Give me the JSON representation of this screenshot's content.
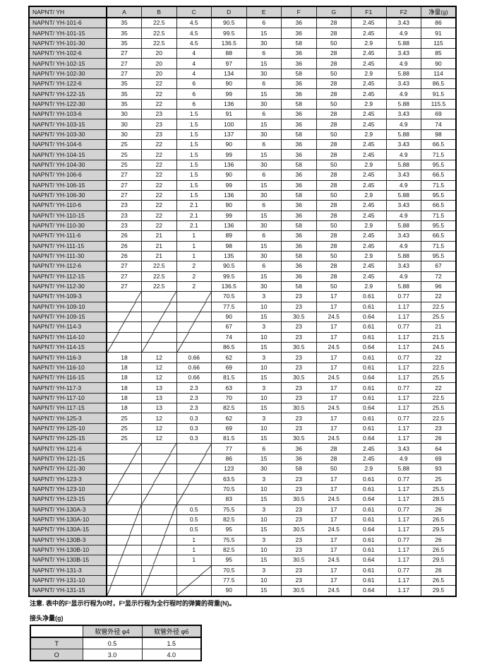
{
  "main_table": {
    "columns": [
      "NAPNT/ YH",
      "A",
      "B",
      "C",
      "D",
      "E",
      "F",
      "G",
      "F1",
      "F2",
      "净量(g)"
    ],
    "rows": [
      [
        "NAPNT/ YH-101-6",
        "35",
        "22.5",
        "4.5",
        "90.5",
        "6",
        "36",
        "28",
        "2.45",
        "3.43",
        "86"
      ],
      [
        "NAPNT/ YH-101-15",
        "35",
        "22.5",
        "4.5",
        "99.5",
        "15",
        "36",
        "28",
        "2.45",
        "4.9",
        "91"
      ],
      [
        "NAPNT/ YH-101-30",
        "35",
        "22.5",
        "4.5",
        "136.5",
        "30",
        "58",
        "50",
        "2.9",
        "5.88",
        "115"
      ],
      [
        "NAPNT/ YH-102-6",
        "27",
        "20",
        "4",
        "88",
        "6",
        "36",
        "28",
        "2.45",
        "3.43",
        "85"
      ],
      [
        "NAPNT/ YH-102-15",
        "27",
        "20",
        "4",
        "97",
        "15",
        "36",
        "28",
        "2.45",
        "4.9",
        "90"
      ],
      [
        "NAPNT/ YH-102-30",
        "27",
        "20",
        "4",
        "134",
        "30",
        "58",
        "50",
        "2.9",
        "5.88",
        "114"
      ],
      [
        "NAPNT/ YH-122-6",
        "35",
        "22",
        "6",
        "90",
        "6",
        "36",
        "28",
        "2.45",
        "3.43",
        "86.5"
      ],
      [
        "NAPNT/ YH-122-15",
        "35",
        "22",
        "6",
        "99",
        "15",
        "36",
        "28",
        "2.45",
        "4.9",
        "91.5"
      ],
      [
        "NAPNT/ YH-122-30",
        "35",
        "22",
        "6",
        "136",
        "30",
        "58",
        "50",
        "2.9",
        "5.88",
        "115.5"
      ],
      [
        "NAPNT/ YH-103-6",
        "30",
        "23",
        "1.5",
        "91",
        "6",
        "36",
        "28",
        "2.45",
        "3.43",
        "69"
      ],
      [
        "NAPNT/ YH-103-15",
        "30",
        "23",
        "1.5",
        "100",
        "15",
        "36",
        "28",
        "2.45",
        "4.9",
        "74"
      ],
      [
        "NAPNT/ YH-103-30",
        "30",
        "23",
        "1.5",
        "137",
        "30",
        "58",
        "50",
        "2.9",
        "5.88",
        "98"
      ],
      [
        "NAPNT/ YH-104-6",
        "25",
        "22",
        "1.5",
        "90",
        "6",
        "36",
        "28",
        "2.45",
        "3.43",
        "66.5"
      ],
      [
        "NAPNT/ YH-104-15",
        "25",
        "22",
        "1.5",
        "99",
        "15",
        "36",
        "28",
        "2.45",
        "4.9",
        "71.5"
      ],
      [
        "NAPNT/ YH-104-30",
        "25",
        "22",
        "1.5",
        "136",
        "30",
        "58",
        "50",
        "2.9",
        "5.88",
        "95.5"
      ],
      [
        "NAPNT/ YH-106-6",
        "27",
        "22",
        "1.5",
        "90",
        "6",
        "36",
        "28",
        "2.45",
        "3.43",
        "66.5"
      ],
      [
        "NAPNT/ YH-106-15",
        "27",
        "22",
        "1.5",
        "99",
        "15",
        "36",
        "28",
        "2.45",
        "4.9",
        "71.5"
      ],
      [
        "NAPNT/ YH-106-30",
        "27",
        "22",
        "1.5",
        "136",
        "30",
        "58",
        "50",
        "2.9",
        "5.88",
        "95.5"
      ],
      [
        "NAPNT/ YH-110-6",
        "23",
        "22",
        "2.1",
        "90",
        "6",
        "36",
        "28",
        "2.45",
        "3.43",
        "66.5"
      ],
      [
        "NAPNT/ YH-110-15",
        "23",
        "22",
        "2.1",
        "99",
        "15",
        "36",
        "28",
        "2.45",
        "4.9",
        "71.5"
      ],
      [
        "NAPNT/ YH-110-30",
        "23",
        "22",
        "2.1",
        "136",
        "30",
        "58",
        "50",
        "2.9",
        "5.88",
        "95.5"
      ],
      [
        "NAPNT/ YH-111-6",
        "26",
        "21",
        "1",
        "89",
        "6",
        "36",
        "28",
        "2.45",
        "3.43",
        "66.5"
      ],
      [
        "NAPNT/ YH-111-15",
        "26",
        "21",
        "1",
        "98",
        "15",
        "36",
        "28",
        "2.45",
        "4.9",
        "71.5"
      ],
      [
        "NAPNT/ YH-111-30",
        "26",
        "21",
        "1",
        "135",
        "30",
        "58",
        "50",
        "2.9",
        "5.88",
        "95.5"
      ],
      [
        "NAPNT/ YH-112-6",
        "27",
        "22.5",
        "2",
        "90.5",
        "6",
        "36",
        "28",
        "2.45",
        "3.43",
        "67"
      ],
      [
        "NAPNT/ YH-112-15",
        "27",
        "22.5",
        "2",
        "99.5",
        "15",
        "36",
        "28",
        "2.45",
        "4.9",
        "72"
      ],
      [
        "NAPNT/ YH-112-30",
        "27",
        "22.5",
        "2",
        "136.5",
        "30",
        "58",
        "50",
        "2.9",
        "5.88",
        "96"
      ],
      [
        "NAPNT/ YH-109-3",
        "",
        "",
        "",
        "70.5",
        "3",
        "23",
        "17",
        "0.61",
        "0.77",
        "22"
      ],
      [
        "NAPNT/ YH-109-10",
        "",
        "",
        "",
        "77.5",
        "10",
        "23",
        "17",
        "0.61",
        "1.17",
        "22.5"
      ],
      [
        "NAPNT/ YH-109-15",
        "",
        "",
        "",
        "90",
        "15",
        "30.5",
        "24.5",
        "0.64",
        "1.17",
        "25.5"
      ],
      [
        "NAPNT/ YH-114-3",
        "",
        "",
        "",
        "67",
        "3",
        "23",
        "17",
        "0.61",
        "0.77",
        "21"
      ],
      [
        "NAPNT/ YH-114-10",
        "",
        "",
        "",
        "74",
        "10",
        "23",
        "17",
        "0.61",
        "1.17",
        "21.5"
      ],
      [
        "NAPNT/ YH-114-15",
        "",
        "",
        "",
        "86.5",
        "15",
        "30.5",
        "24.5",
        "0.64",
        "1.17",
        "24.5"
      ],
      [
        "NAPNT/ YH-116-3",
        "18",
        "12",
        "0.66",
        "62",
        "3",
        "23",
        "17",
        "0.61",
        "0.77",
        "22"
      ],
      [
        "NAPNT/ YH-116-10",
        "18",
        "12",
        "0.66",
        "69",
        "10",
        "23",
        "17",
        "0.61",
        "1.17",
        "22.5"
      ],
      [
        "NAPNT/ YH-116-15",
        "18",
        "12",
        "0.66",
        "81.5",
        "15",
        "30.5",
        "24.5",
        "0.64",
        "1.17",
        "25.5"
      ],
      [
        "NAPNT/ YH-117-3",
        "18",
        "13",
        "2.3",
        "63",
        "3",
        "23",
        "17",
        "0.61",
        "0.77",
        "22"
      ],
      [
        "NAPNT/ YH-117-10",
        "18",
        "13",
        "2.3",
        "70",
        "10",
        "23",
        "17",
        "0.61",
        "1.17",
        "22.5"
      ],
      [
        "NAPNT/ YH-117-15",
        "18",
        "13",
        "2.3",
        "82.5",
        "15",
        "30.5",
        "24.5",
        "0.64",
        "1.17",
        "25.5"
      ],
      [
        "NAPNT/ YH-125-3",
        "25",
        "12",
        "0.3",
        "62",
        "3",
        "23",
        "17",
        "0.61",
        "0.77",
        "22.5"
      ],
      [
        "NAPNT/ YH-125-10",
        "25",
        "12",
        "0.3",
        "69",
        "10",
        "23",
        "17",
        "0.61",
        "1.17",
        "23"
      ],
      [
        "NAPNT/ YH-125-15",
        "25",
        "12",
        "0.3",
        "81.5",
        "15",
        "30.5",
        "24.5",
        "0.64",
        "1.17",
        "26"
      ],
      [
        "NAPNT/ YH-121-6",
        "",
        "",
        "",
        "77",
        "6",
        "36",
        "28",
        "2.45",
        "3.43",
        "64"
      ],
      [
        "NAPNT/ YH-121-15",
        "",
        "",
        "",
        "86",
        "15",
        "36",
        "28",
        "2.45",
        "4.9",
        "69"
      ],
      [
        "NAPNT/ YH-121-30",
        "",
        "",
        "",
        "123",
        "30",
        "58",
        "50",
        "2.9",
        "5.88",
        "93"
      ],
      [
        "NAPNT/ YH-123-3",
        "",
        "",
        "",
        "63.5",
        "3",
        "23",
        "17",
        "0.61",
        "0.77",
        "25"
      ],
      [
        "NAPNT/ YH-123-10",
        "",
        "",
        "",
        "70.5",
        "10",
        "23",
        "17",
        "0.61",
        "1.17",
        "25.5"
      ],
      [
        "NAPNT/ YH-123-15",
        "",
        "",
        "",
        "83",
        "15",
        "30.5",
        "24.5",
        "0.64",
        "1.17",
        "28.5"
      ],
      [
        "NAPNT/ YH-130A-3",
        "",
        "",
        "0.5",
        "75.5",
        "3",
        "23",
        "17",
        "0.61",
        "0.77",
        "26"
      ],
      [
        "NAPNT/ YH-130A-10",
        "",
        "",
        "0.5",
        "82.5",
        "10",
        "23",
        "17",
        "0.61",
        "1.17",
        "26.5"
      ],
      [
        "NAPNT/ YH-130A-15",
        "",
        "",
        "0.5",
        "95",
        "15",
        "30.5",
        "24.5",
        "0.64",
        "1.17",
        "29.5"
      ],
      [
        "NAPNT/ YH-130B-3",
        "",
        "",
        "1",
        "75.5",
        "3",
        "23",
        "17",
        "0.61",
        "0.77",
        "26"
      ],
      [
        "NAPNT/ YH-130B-10",
        "",
        "",
        "1",
        "82.5",
        "10",
        "23",
        "17",
        "0.61",
        "1.17",
        "26.5"
      ],
      [
        "NAPNT/ YH-130B-15",
        "",
        "",
        "1",
        "95",
        "15",
        "30.5",
        "24.5",
        "0.64",
        "1.17",
        "29.5"
      ],
      [
        "NAPNT/ YH-131-3",
        "",
        "",
        "",
        "70.5",
        "3",
        "23",
        "17",
        "0.61",
        "0.77",
        "26"
      ],
      [
        "NAPNT/ YH-131-10",
        "",
        "",
        "",
        "77.5",
        "10",
        "23",
        "17",
        "0.61",
        "1.17",
        "26.5"
      ],
      [
        "NAPNT/ YH-131-15",
        "",
        "",
        "",
        "90",
        "15",
        "30.5",
        "24.5",
        "0.64",
        "1.17",
        "29.5"
      ]
    ],
    "slash_groups": [
      {
        "start": 27,
        "count": 6,
        "cols": [
          1,
          2,
          3
        ]
      },
      {
        "start": 42,
        "count": 6,
        "cols": [
          1,
          2,
          3
        ]
      },
      {
        "start": 48,
        "count": 9,
        "cols": [
          1,
          2
        ]
      },
      {
        "start": 54,
        "count": 3,
        "cols": [
          3
        ]
      }
    ]
  },
  "note": "注意. 表中的F¹显示行程为0时，F²显示行程为全行程时的弹簧的荷重(N)。",
  "joint_table": {
    "caption": "接头净量(g)",
    "col_headers": [
      "软管外径 φ4",
      "软管外径 φ6"
    ],
    "rows": [
      {
        "label": "T",
        "values": [
          "0.5",
          "1.5"
        ]
      },
      {
        "label": "O",
        "values": [
          "3.0",
          "4.0"
        ]
      }
    ]
  },
  "colors": {
    "header_bg": "#d3d3d3",
    "border": "#2a2a2a",
    "text": "#111111"
  }
}
